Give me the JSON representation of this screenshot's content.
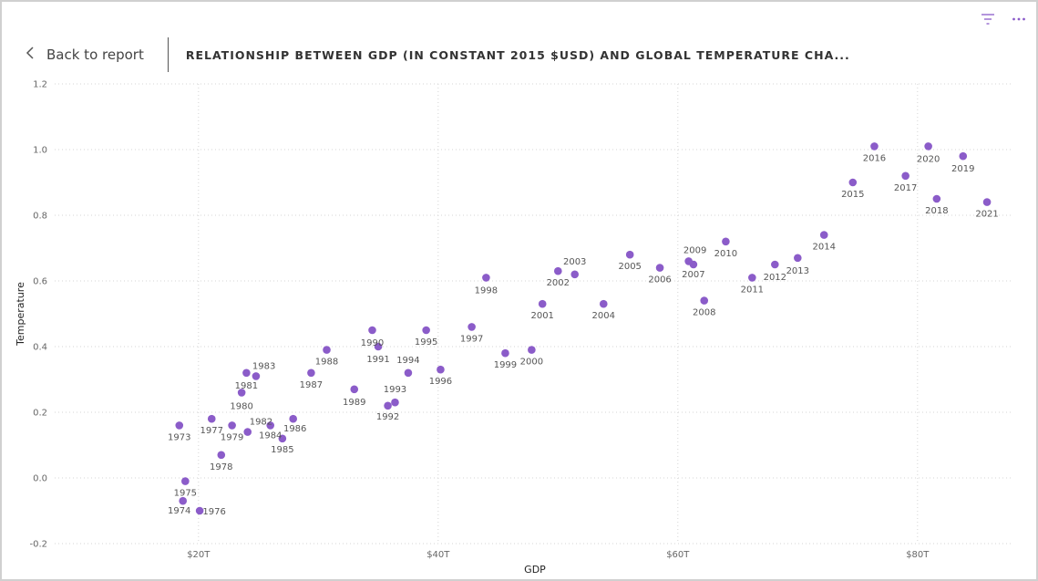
{
  "header": {
    "back_label": "Back to report",
    "title": "RELATIONSHIP BETWEEN GDP (IN CONSTANT 2015 $USD) AND GLOBAL TEMPERATURE CHA..."
  },
  "icons": {
    "back": "chevron-left-icon",
    "filter": "filter-icon",
    "more": "more-options-icon",
    "accent": "#8b5cc9"
  },
  "chart_data": {
    "type": "scatter",
    "xlabel": "GDP",
    "ylabel": "Temperature",
    "xlim": [
      8,
      88
    ],
    "ylim": [
      -0.2,
      1.2
    ],
    "x_ticks": [
      {
        "value": 20,
        "label": "$20T"
      },
      {
        "value": 40,
        "label": "$40T"
      },
      {
        "value": 60,
        "label": "$60T"
      },
      {
        "value": 80,
        "label": "$80T"
      }
    ],
    "y_ticks": [
      {
        "value": 1.2,
        "label": "1.2"
      },
      {
        "value": 1.0,
        "label": "1.0"
      },
      {
        "value": 0.8,
        "label": "0.8"
      },
      {
        "value": 0.6,
        "label": "0.6"
      },
      {
        "value": 0.4,
        "label": "0.4"
      },
      {
        "value": 0.2,
        "label": "0.2"
      },
      {
        "value": 0.0,
        "label": "0.0"
      },
      {
        "value": -0.2,
        "label": "-0.2"
      }
    ],
    "grid": true,
    "color": "#8b5cc9",
    "points": [
      {
        "label": "1973",
        "x": 18.4,
        "y": 0.16
      },
      {
        "label": "1974",
        "x": 18.7,
        "y": -0.07
      },
      {
        "label": "1975",
        "x": 18.9,
        "y": -0.01
      },
      {
        "label": "1976",
        "x": 20.1,
        "y": -0.1
      },
      {
        "label": "1977",
        "x": 21.1,
        "y": 0.18
      },
      {
        "label": "1978",
        "x": 21.9,
        "y": 0.07
      },
      {
        "label": "1979",
        "x": 22.8,
        "y": 0.16
      },
      {
        "label": "1980",
        "x": 23.6,
        "y": 0.26
      },
      {
        "label": "1981",
        "x": 24.0,
        "y": 0.32
      },
      {
        "label": "1982",
        "x": 24.1,
        "y": 0.14
      },
      {
        "label": "1983",
        "x": 24.8,
        "y": 0.31
      },
      {
        "label": "1984",
        "x": 26.0,
        "y": 0.16
      },
      {
        "label": "1985",
        "x": 27.0,
        "y": 0.12
      },
      {
        "label": "1986",
        "x": 27.9,
        "y": 0.18
      },
      {
        "label": "1987",
        "x": 29.4,
        "y": 0.32
      },
      {
        "label": "1988",
        "x": 30.7,
        "y": 0.39
      },
      {
        "label": "1989",
        "x": 33.0,
        "y": 0.27
      },
      {
        "label": "1990",
        "x": 34.5,
        "y": 0.45
      },
      {
        "label": "1991",
        "x": 35.0,
        "y": 0.4
      },
      {
        "label": "1992",
        "x": 35.8,
        "y": 0.22
      },
      {
        "label": "1993",
        "x": 36.4,
        "y": 0.23
      },
      {
        "label": "1994",
        "x": 37.5,
        "y": 0.32
      },
      {
        "label": "1995",
        "x": 39.0,
        "y": 0.45
      },
      {
        "label": "1996",
        "x": 40.2,
        "y": 0.33
      },
      {
        "label": "1997",
        "x": 42.8,
        "y": 0.46
      },
      {
        "label": "1998",
        "x": 44.0,
        "y": 0.61
      },
      {
        "label": "1999",
        "x": 45.6,
        "y": 0.38
      },
      {
        "label": "2000",
        "x": 47.8,
        "y": 0.39
      },
      {
        "label": "2001",
        "x": 48.7,
        "y": 0.53
      },
      {
        "label": "2002",
        "x": 50.0,
        "y": 0.63
      },
      {
        "label": "2003",
        "x": 51.4,
        "y": 0.62
      },
      {
        "label": "2004",
        "x": 53.8,
        "y": 0.53
      },
      {
        "label": "2005",
        "x": 56.0,
        "y": 0.68
      },
      {
        "label": "2006",
        "x": 58.5,
        "y": 0.64
      },
      {
        "label": "2007",
        "x": 61.3,
        "y": 0.65
      },
      {
        "label": "2008",
        "x": 62.2,
        "y": 0.54
      },
      {
        "label": "2009",
        "x": 60.9,
        "y": 0.66
      },
      {
        "label": "2010",
        "x": 64.0,
        "y": 0.72
      },
      {
        "label": "2011",
        "x": 66.2,
        "y": 0.61
      },
      {
        "label": "2012",
        "x": 68.1,
        "y": 0.65
      },
      {
        "label": "2013",
        "x": 70.0,
        "y": 0.67
      },
      {
        "label": "2014",
        "x": 72.2,
        "y": 0.74
      },
      {
        "label": "2015",
        "x": 74.6,
        "y": 0.9
      },
      {
        "label": "2016",
        "x": 76.4,
        "y": 1.01
      },
      {
        "label": "2017",
        "x": 79.0,
        "y": 0.92
      },
      {
        "label": "2018",
        "x": 81.6,
        "y": 0.85
      },
      {
        "label": "2019",
        "x": 83.8,
        "y": 0.98
      },
      {
        "label": "2020",
        "x": 80.9,
        "y": 1.01
      },
      {
        "label": "2021",
        "x": 85.8,
        "y": 0.84
      }
    ]
  }
}
